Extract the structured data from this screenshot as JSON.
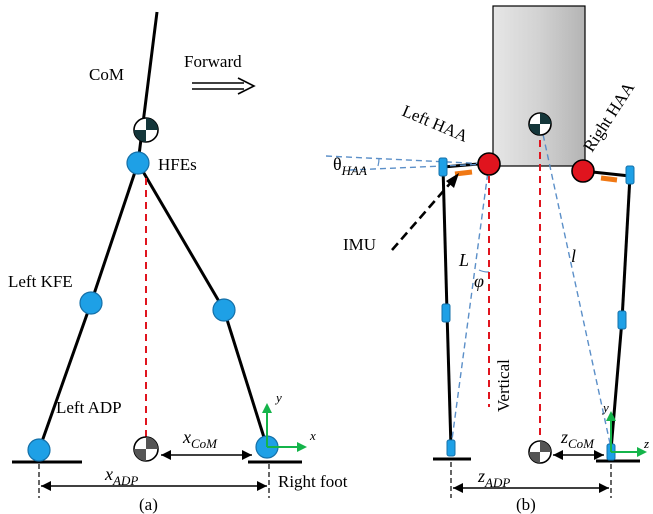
{
  "panel_a": {
    "caption": "(a)",
    "com_label": "CoM",
    "forward_label": "Forward",
    "hfe_label": "HFEs",
    "left_kfe_label": "Left KFE",
    "left_adp_label": "Left ADP",
    "right_foot_label": "Right foot",
    "x_com_main": "x",
    "x_com_sub": "CoM",
    "x_adp_main": "x",
    "x_adp_sub": "ADP",
    "axis_y": "y",
    "axis_x": "x"
  },
  "panel_b": {
    "caption": "(b)",
    "left_haa_label": "Left HAA",
    "right_haa_label": "Right HAA",
    "theta_main": "θ",
    "theta_sub": "HAA",
    "imu_label": "IMU",
    "L_label": "L",
    "phi_label": "φ",
    "l_label": "l",
    "vertical_label": "Vertical",
    "z_com_main": "z",
    "z_com_sub": "CoM",
    "z_adp_main": "z",
    "z_adp_sub": "ADP",
    "axis_y": "y",
    "axis_z": "z"
  },
  "colors": {
    "joint": "#1ea0e6",
    "haa_joint": "#e0141e",
    "guide_line": "#e0141e",
    "dashed_blue": "#5b8fc8",
    "axis_green": "#14b44a",
    "imu_orange": "#f07814",
    "body_gray": "#d9d9d9"
  }
}
